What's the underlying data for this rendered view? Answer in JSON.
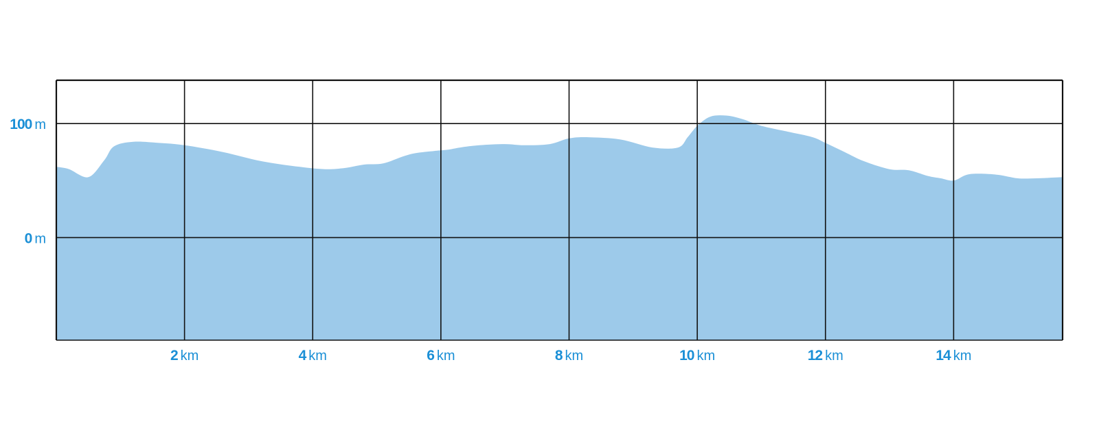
{
  "chart_data": {
    "type": "area",
    "title": "",
    "xlabel": "",
    "ylabel": "",
    "x_unit": "km",
    "y_unit": "m",
    "xlim": [
      0,
      15.7
    ],
    "ylim": [
      -90,
      138
    ],
    "grid": true,
    "legend": "none",
    "colors": {
      "fill": "#9dcaea",
      "grid": "#111111",
      "tick_text": "#1a8fd6"
    },
    "x_ticks": [
      {
        "num": "2",
        "unit": "km",
        "value": 2
      },
      {
        "num": "4",
        "unit": "km",
        "value": 4
      },
      {
        "num": "6",
        "unit": "km",
        "value": 6
      },
      {
        "num": "8",
        "unit": "km",
        "value": 8
      },
      {
        "num": "10",
        "unit": "km",
        "value": 10
      },
      {
        "num": "12",
        "unit": "km",
        "value": 12
      },
      {
        "num": "14",
        "unit": "km",
        "value": 14
      }
    ],
    "y_ticks": [
      {
        "num": "100",
        "unit": "m",
        "value": 100
      },
      {
        "num": "0",
        "unit": "m",
        "value": 0
      }
    ],
    "series": [
      {
        "x": [
          0,
          0.2,
          0.5,
          0.75,
          0.9,
          1.2,
          1.6,
          2.0,
          2.6,
          3.2,
          3.8,
          4.2,
          4.5,
          4.8,
          5.1,
          5.4,
          5.6,
          5.9,
          6.1,
          6.3,
          6.6,
          7.0,
          7.3,
          7.7,
          8.0,
          8.3,
          8.8,
          9.3,
          9.7,
          9.85,
          10.0,
          10.2,
          10.45,
          10.7,
          11.0,
          11.4,
          11.8,
          12.0,
          12.3,
          12.6,
          13.0,
          13.3,
          13.6,
          13.8,
          14.0,
          14.2,
          14.4,
          14.7,
          15.0,
          15.3,
          15.7
        ],
        "y": [
          62,
          60,
          53,
          68,
          80,
          84,
          83,
          81,
          75,
          67,
          62,
          60,
          61,
          64,
          65,
          71,
          74,
          76,
          77,
          79,
          81,
          82,
          81,
          82,
          87,
          88,
          86,
          79,
          79,
          88,
          98,
          106,
          107,
          104,
          98,
          93,
          88,
          83,
          75,
          67,
          60,
          59,
          54,
          52,
          50,
          55,
          56,
          55,
          52,
          52,
          53
        ]
      }
    ]
  }
}
